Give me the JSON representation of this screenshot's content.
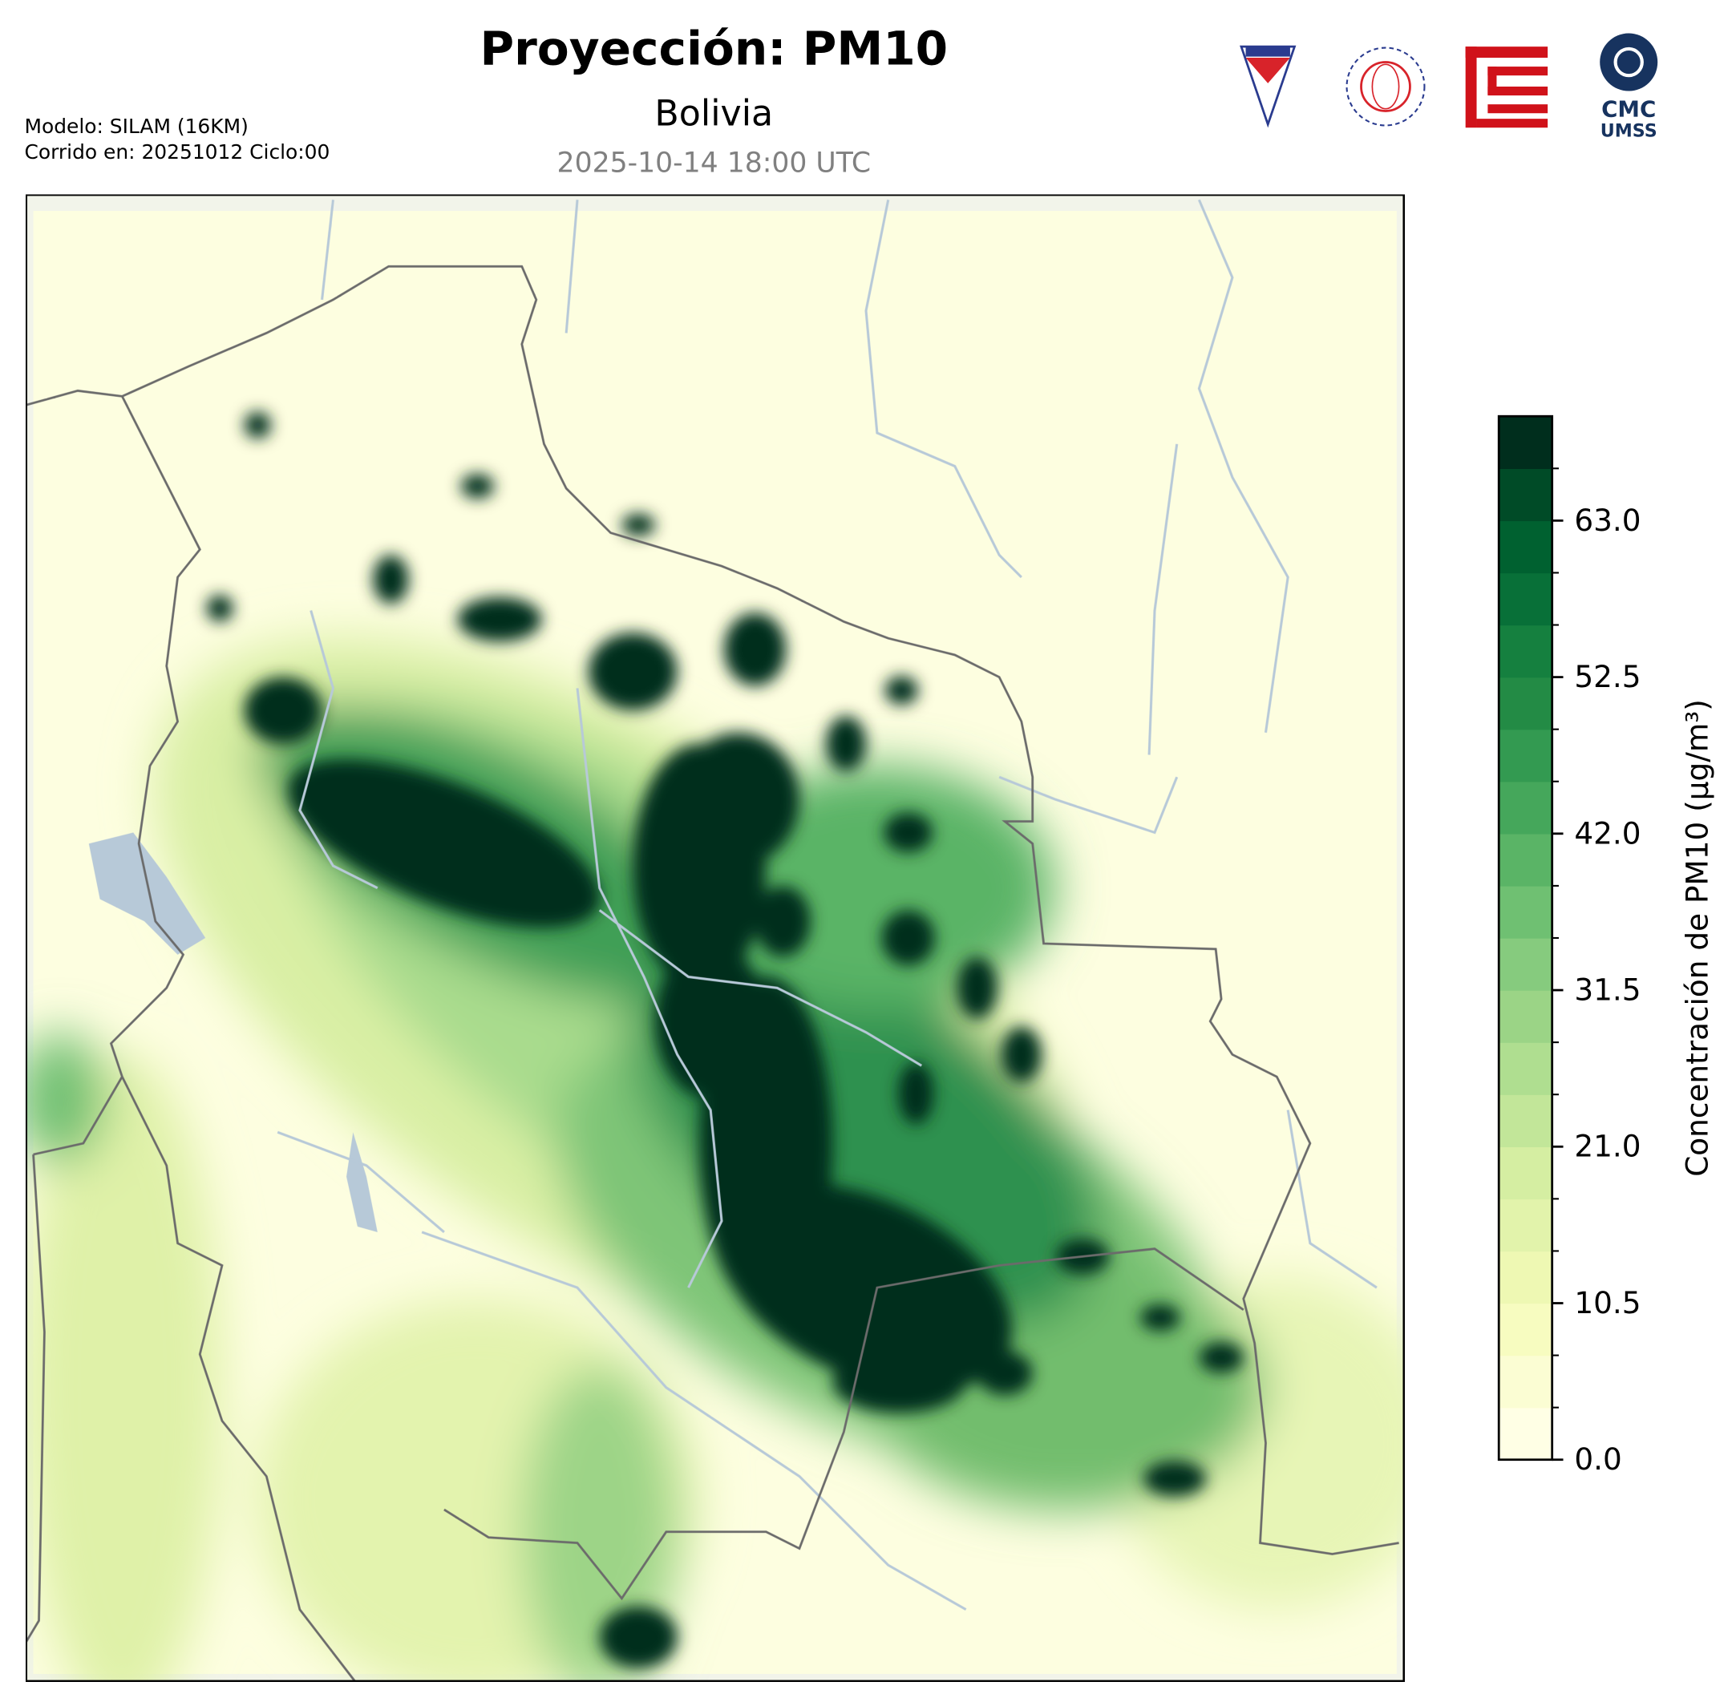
{
  "header": {
    "title": "Proyección: PM10",
    "subtitle": "Bolivia",
    "date": "2025-10-14 18:00 UTC"
  },
  "model_info": [
    "Modelo: SILAM (16KM)",
    "Corrido en: 20251012 Ciclo:00"
  ],
  "logos": {
    "cmc": [
      "CMC",
      "UMSS"
    ]
  },
  "colorbar": {
    "label": "Concentración de PM10 (µg/m³)",
    "lim": [
      0,
      70
    ],
    "levels": 20,
    "colors": [
      "#ffffe5",
      "#fbfdd3",
      "#f7fcc0",
      "#eef8b3",
      "#e2f3ab",
      "#d5eea2",
      "#c2e699",
      "#afde90",
      "#9bd486",
      "#86cb7e",
      "#6fc072",
      "#5ab466",
      "#45a75b",
      "#339a51",
      "#238b45",
      "#15803f",
      "#087038",
      "#006130",
      "#004b27",
      "#002e1d"
    ],
    "ticks": [
      {
        "value": 0,
        "label": "0.0"
      },
      {
        "value": 10.5,
        "label": "10.5"
      },
      {
        "value": 21,
        "label": "21.0"
      },
      {
        "value": 31.5,
        "label": "31.5"
      },
      {
        "value": 42,
        "label": "42.0"
      },
      {
        "value": 52.5,
        "label": "52.5"
      },
      {
        "value": 63,
        "label": "63.0"
      }
    ]
  }
}
